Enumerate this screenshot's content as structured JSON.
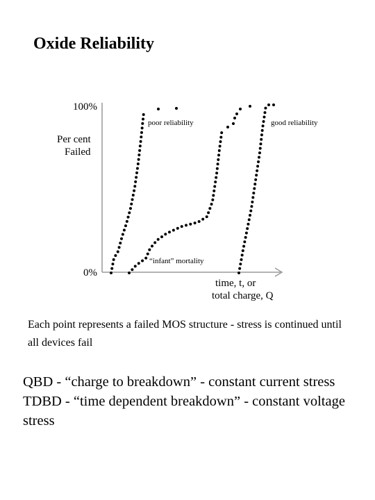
{
  "title": "Oxide Reliability",
  "figure": {
    "y_top_label": "100%",
    "y_bottom_label": "0%",
    "y_axis_title": [
      "Per cent",
      "Failed"
    ],
    "x_axis_title": [
      "time, t, or",
      "total charge, Q"
    ],
    "annotations": [
      "poor reliability",
      "good reliability",
      "“infant” mortality"
    ]
  },
  "caption": "Each point represents a failed MOS structure - stress is continued until all devices fail",
  "body": [
    "QBD - “charge to breakdown” - constant current stress",
    "TDBD - “time dependent breakdown” - constant voltage stress"
  ]
}
